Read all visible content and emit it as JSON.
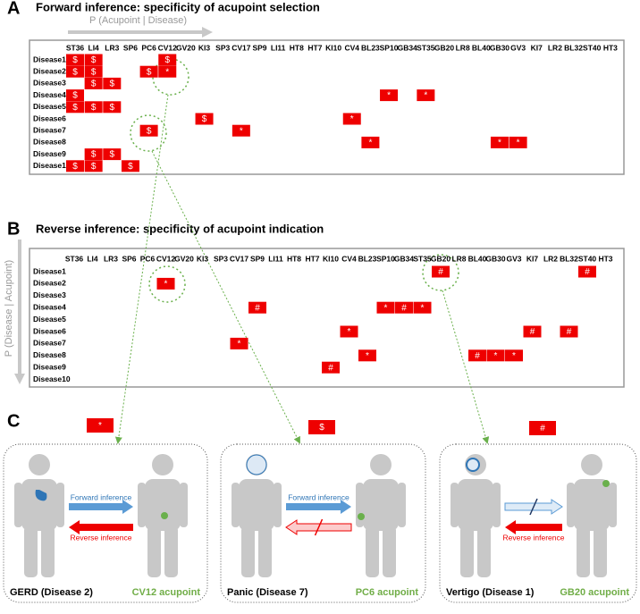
{
  "forward": {
    "letter": "A",
    "title": "Forward inference: specificity of acupoint selection",
    "axis_label": "P (Acupoint | Disease)",
    "columns": [
      "ST36",
      "LI4",
      "LR3",
      "SP6",
      "PC6",
      "CV12",
      "GV20",
      "KI3",
      "SP3",
      "CV17",
      "SP9",
      "LI11",
      "HT8",
      "HT7",
      "KI10",
      "CV4",
      "BL23",
      "SP10",
      "GB34",
      "ST35",
      "GB20",
      "LR8",
      "BL40",
      "GB30",
      "GV3",
      "KI7",
      "LR2",
      "BL32",
      "ST40",
      "HT3"
    ],
    "rows": [
      {
        "label": "Disease1",
        "cells": [
          "$",
          "$",
          null,
          null,
          null,
          "$",
          null,
          null,
          null,
          null,
          null,
          null,
          null,
          null,
          null,
          null,
          null,
          null,
          null,
          null,
          null,
          null,
          null,
          null,
          null,
          null,
          null,
          null,
          null,
          null
        ]
      },
      {
        "label": "Disease2",
        "cells": [
          "$",
          "$",
          null,
          null,
          "$",
          "*",
          null,
          null,
          null,
          null,
          null,
          null,
          null,
          null,
          null,
          null,
          null,
          null,
          null,
          null,
          null,
          null,
          null,
          null,
          null,
          null,
          null,
          null,
          null,
          null
        ]
      },
      {
        "label": "Disease3",
        "cells": [
          null,
          "$",
          "$",
          null,
          null,
          null,
          null,
          null,
          null,
          null,
          null,
          null,
          null,
          null,
          null,
          null,
          null,
          null,
          null,
          null,
          null,
          null,
          null,
          null,
          null,
          null,
          null,
          null,
          null,
          null
        ]
      },
      {
        "label": "Disease4",
        "cells": [
          "$",
          null,
          null,
          null,
          null,
          null,
          null,
          null,
          null,
          null,
          null,
          null,
          null,
          null,
          null,
          null,
          null,
          "*",
          null,
          "*",
          null,
          null,
          null,
          null,
          null,
          null,
          null,
          null,
          null,
          null
        ]
      },
      {
        "label": "Disease5",
        "cells": [
          "$",
          "$",
          "$",
          null,
          null,
          null,
          null,
          null,
          null,
          null,
          null,
          null,
          null,
          null,
          null,
          null,
          null,
          null,
          null,
          null,
          null,
          null,
          null,
          null,
          null,
          null,
          null,
          null,
          null,
          null
        ]
      },
      {
        "label": "Disease6",
        "cells": [
          null,
          null,
          null,
          null,
          null,
          null,
          null,
          "$",
          null,
          null,
          null,
          null,
          null,
          null,
          null,
          "*",
          null,
          null,
          null,
          null,
          null,
          null,
          null,
          null,
          null,
          null,
          null,
          null,
          null,
          null
        ]
      },
      {
        "label": "Disease7",
        "cells": [
          null,
          null,
          null,
          null,
          "$",
          null,
          null,
          null,
          null,
          "*",
          null,
          null,
          null,
          null,
          null,
          null,
          null,
          null,
          null,
          null,
          null,
          null,
          null,
          null,
          null,
          null,
          null,
          null,
          null,
          null
        ]
      },
      {
        "label": "Disease8",
        "cells": [
          null,
          null,
          null,
          null,
          null,
          null,
          null,
          null,
          null,
          null,
          null,
          null,
          null,
          null,
          null,
          null,
          "*",
          null,
          null,
          null,
          null,
          null,
          null,
          "*",
          "*",
          null,
          null,
          null,
          null,
          null
        ]
      },
      {
        "label": "Disease9",
        "cells": [
          null,
          "$",
          "$",
          null,
          null,
          null,
          null,
          null,
          null,
          null,
          null,
          null,
          null,
          null,
          null,
          null,
          null,
          null,
          null,
          null,
          null,
          null,
          null,
          null,
          null,
          null,
          null,
          null,
          null,
          null
        ]
      },
      {
        "label": "Disease10",
        "cells": [
          "$",
          "$",
          null,
          "$",
          null,
          null,
          null,
          null,
          null,
          null,
          null,
          null,
          null,
          null,
          null,
          null,
          null,
          null,
          null,
          null,
          null,
          null,
          null,
          null,
          null,
          null,
          null,
          null,
          null,
          null
        ]
      }
    ]
  },
  "reverse": {
    "letter": "B",
    "title": "Reverse inference: specificity of acupoint indication",
    "axis_label": "P (Disease | Acupoint)",
    "columns": [
      "ST36",
      "LI4",
      "LR3",
      "SP6",
      "PC6",
      "CV12",
      "GV20",
      "KI3",
      "SP3",
      "CV17",
      "SP9",
      "LI11",
      "HT8",
      "HT7",
      "KI10",
      "CV4",
      "BL23",
      "SP10",
      "GB34",
      "ST35",
      "GB20",
      "LR8",
      "BL40",
      "GB30",
      "GV3",
      "KI7",
      "LR2",
      "BL32",
      "ST40",
      "HT3"
    ],
    "rows": [
      {
        "label": "Disease1",
        "cells": [
          null,
          null,
          null,
          null,
          null,
          null,
          null,
          null,
          null,
          null,
          null,
          null,
          null,
          null,
          null,
          null,
          null,
          null,
          null,
          null,
          "#",
          null,
          null,
          null,
          null,
          null,
          null,
          null,
          "#",
          null
        ]
      },
      {
        "label": "Disease2",
        "cells": [
          null,
          null,
          null,
          null,
          null,
          "*",
          null,
          null,
          null,
          null,
          null,
          null,
          null,
          null,
          null,
          null,
          null,
          null,
          null,
          null,
          null,
          null,
          null,
          null,
          null,
          null,
          null,
          null,
          null,
          null
        ]
      },
      {
        "label": "Disease3",
        "cells": [
          null,
          null,
          null,
          null,
          null,
          null,
          null,
          null,
          null,
          null,
          null,
          null,
          null,
          null,
          null,
          null,
          null,
          null,
          null,
          null,
          null,
          null,
          null,
          null,
          null,
          null,
          null,
          null,
          null,
          null
        ]
      },
      {
        "label": "Disease4",
        "cells": [
          null,
          null,
          null,
          null,
          null,
          null,
          null,
          null,
          null,
          null,
          "#",
          null,
          null,
          null,
          null,
          null,
          null,
          "*",
          "#",
          "*",
          null,
          null,
          null,
          null,
          null,
          null,
          null,
          null,
          null,
          null
        ]
      },
      {
        "label": "Disease5",
        "cells": [
          null,
          null,
          null,
          null,
          null,
          null,
          null,
          null,
          null,
          null,
          null,
          null,
          null,
          null,
          null,
          null,
          null,
          null,
          null,
          null,
          null,
          null,
          null,
          null,
          null,
          null,
          null,
          null,
          null,
          null
        ]
      },
      {
        "label": "Disease6",
        "cells": [
          null,
          null,
          null,
          null,
          null,
          null,
          null,
          null,
          null,
          null,
          null,
          null,
          null,
          null,
          null,
          "*",
          null,
          null,
          null,
          null,
          null,
          null,
          null,
          null,
          null,
          "#",
          null,
          "#",
          null,
          null
        ]
      },
      {
        "label": "Disease7",
        "cells": [
          null,
          null,
          null,
          null,
          null,
          null,
          null,
          null,
          null,
          "*",
          null,
          null,
          null,
          null,
          null,
          null,
          null,
          null,
          null,
          null,
          null,
          null,
          null,
          null,
          null,
          null,
          null,
          null,
          null,
          null
        ]
      },
      {
        "label": "Disease8",
        "cells": [
          null,
          null,
          null,
          null,
          null,
          null,
          null,
          null,
          null,
          null,
          null,
          null,
          null,
          null,
          null,
          null,
          "*",
          null,
          null,
          null,
          null,
          null,
          "#",
          "*",
          "*",
          null,
          null,
          null,
          null,
          null
        ]
      },
      {
        "label": "Disease9",
        "cells": [
          null,
          null,
          null,
          null,
          null,
          null,
          null,
          null,
          null,
          null,
          null,
          null,
          null,
          null,
          "#",
          null,
          null,
          null,
          null,
          null,
          null,
          null,
          null,
          null,
          null,
          null,
          null,
          null,
          null,
          null
        ]
      },
      {
        "label": "Disease10",
        "cells": [
          null,
          null,
          null,
          null,
          null,
          null,
          null,
          null,
          null,
          null,
          null,
          null,
          null,
          null,
          null,
          null,
          null,
          null,
          null,
          null,
          null,
          null,
          null,
          null,
          null,
          null,
          null,
          null,
          null,
          null
        ]
      }
    ]
  },
  "examples": {
    "letter": "C",
    "cases": [
      {
        "marker": "*",
        "disease": "GERD (Disease 2)",
        "acupoint": "CV12 acupoint",
        "forward": "Forward inference",
        "reverse": "Reverse inference"
      },
      {
        "marker": "$",
        "disease": "Panic (Disease 7)",
        "acupoint": "PC6 acupoint",
        "forward": "Forward inference",
        "reverse": null
      },
      {
        "marker": "#",
        "disease": "Vertigo (Disease 1)",
        "acupoint": "GB20 acupoint",
        "forward": null,
        "reverse": "Reverse inference"
      }
    ]
  }
}
